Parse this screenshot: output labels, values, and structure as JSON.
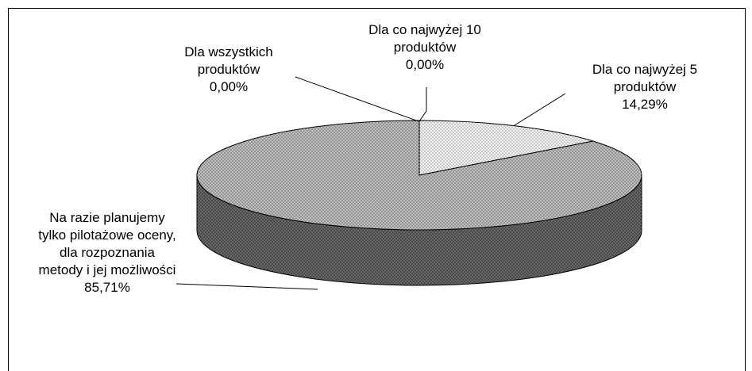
{
  "chart_data": {
    "type": "pie3d",
    "categories": [
      "Dla wszystkich produktów",
      "Dla co najwyżej 10 produktów",
      "Dla co najwyżej 5 produktów",
      "Na razie planujemy tylko pilotażowe oceny, dla rozpoznania metody i jej możliwości"
    ],
    "values": [
      0.0,
      0.0,
      14.29,
      85.71
    ],
    "value_labels": [
      "0,00%",
      "0,00%",
      "14,29%",
      "85,71%"
    ]
  }
}
